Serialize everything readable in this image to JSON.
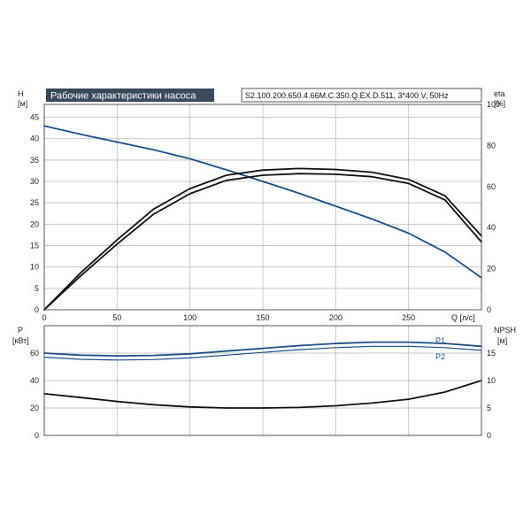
{
  "header": {
    "title": "Рабочие характеристики насоса",
    "model": "S2.100.200.650.4.66M.C.350.Q.EX.D.511, 3*400 V, 50Hz"
  },
  "colors": {
    "blue": "#1a4f8a",
    "black": "#111111",
    "title_bg": "#3a4a5c",
    "grid": "#c8c8c8"
  },
  "chart_data": [
    {
      "type": "line",
      "panel": "top",
      "x_label": "Q [л/с]",
      "x_ticks": [
        0,
        50,
        100,
        150,
        200,
        250
      ],
      "xlim": [
        0,
        300
      ],
      "y_left_label_line1": "H",
      "y_left_label_line2": "[м]",
      "y_left_ticks": [
        0,
        5,
        10,
        15,
        20,
        25,
        30,
        35,
        40,
        45
      ],
      "y_left_lim": [
        0,
        48
      ],
      "y_right_label_line1": "eta",
      "y_right_label_line2": "[%]",
      "y_right_ticks": [
        0,
        20,
        40,
        60,
        80,
        100
      ],
      "y_right_lim": [
        0,
        100
      ],
      "grid": true,
      "series": [
        {
          "axis": "left",
          "color": "blue",
          "x": [
            0,
            25,
            50,
            75,
            100,
            125,
            150,
            175,
            200,
            225,
            250,
            275,
            300
          ],
          "y": [
            43,
            41,
            39.2,
            37.4,
            35.3,
            32.7,
            30.0,
            27.2,
            24.2,
            21.2,
            17.9,
            13.5,
            7.5
          ]
        },
        {
          "axis": "right",
          "color": "black",
          "x": [
            0,
            25,
            50,
            75,
            100,
            125,
            150,
            175,
            200,
            225,
            250,
            275,
            300
          ],
          "y": [
            0,
            18,
            34,
            49,
            59,
            65.5,
            68,
            68.8,
            68.3,
            67,
            63.5,
            55.5,
            36
          ]
        },
        {
          "axis": "right",
          "color": "black",
          "x": [
            0,
            25,
            50,
            75,
            100,
            125,
            150,
            175,
            200,
            225,
            250,
            275,
            300
          ],
          "y": [
            0,
            16.5,
            32,
            46.5,
            56.5,
            63,
            65.5,
            66.3,
            66,
            64.8,
            61.5,
            53.5,
            33
          ]
        }
      ]
    },
    {
      "type": "line",
      "panel": "bottom",
      "x_ticks": [
        0,
        50,
        100,
        150,
        200,
        250
      ],
      "xlim": [
        0,
        300
      ],
      "y_left_label_line1": "P",
      "y_left_label_line2": "[кВт]",
      "y_left_ticks": [
        0,
        20,
        40,
        60
      ],
      "y_left_lim": [
        0,
        80
      ],
      "y_right_label_line1": "NPSH",
      "y_right_label_line2": "[м]",
      "y_right_ticks": [
        0,
        5,
        10,
        15
      ],
      "y_right_lim": [
        0,
        20
      ],
      "grid": true,
      "series": [
        {
          "name": "P1",
          "axis": "left",
          "color": "blue",
          "x": [
            0,
            25,
            50,
            75,
            100,
            125,
            150,
            175,
            200,
            225,
            250,
            275,
            300
          ],
          "y": [
            60,
            58.5,
            58,
            58.3,
            59.5,
            61.5,
            63.5,
            65.5,
            67,
            68,
            68,
            67,
            65
          ]
        },
        {
          "name": "P2",
          "axis": "left",
          "color": "blue",
          "x": [
            0,
            25,
            50,
            75,
            100,
            125,
            150,
            175,
            200,
            225,
            250,
            275,
            300
          ],
          "y": [
            57,
            55.5,
            55,
            55.3,
            56.5,
            58.5,
            60.5,
            62.5,
            64,
            65,
            65,
            64,
            62
          ]
        },
        {
          "axis": "right",
          "color": "black",
          "x": [
            0,
            25,
            50,
            75,
            100,
            125,
            150,
            175,
            200,
            225,
            250,
            275,
            300
          ],
          "y": [
            7.6,
            6.9,
            6.2,
            5.6,
            5.2,
            5.0,
            5.0,
            5.1,
            5.4,
            5.9,
            6.6,
            7.9,
            10
          ]
        }
      ]
    }
  ]
}
